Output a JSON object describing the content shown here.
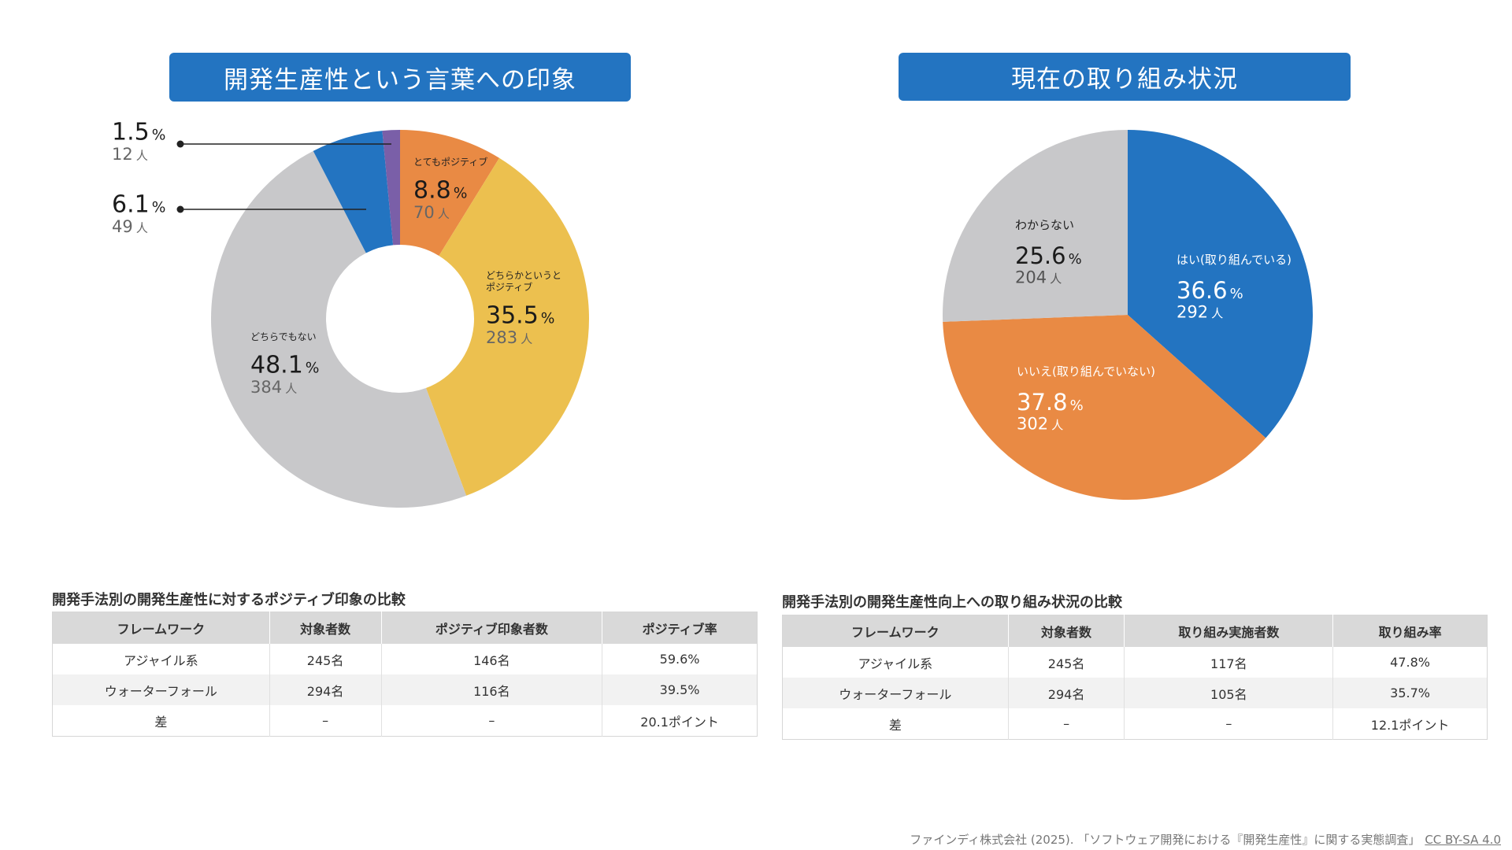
{
  "left_title": "開発生産性という言葉への印象",
  "right_title": "現在の取り組み状況",
  "colors": {
    "blue": "#2374c1",
    "orange": "#e98a44",
    "yellow": "#ecc04f",
    "gray": "#c8c8ca",
    "purple": "#7a5fa8"
  },
  "chart_data": [
    {
      "type": "pie",
      "donut": true,
      "title": "開発生産性という言葉への印象",
      "slices": [
        {
          "label": "とてもポジティブ",
          "percent": 8.8,
          "count": "70",
          "color": "#e98a44"
        },
        {
          "label": "どちらかというと\nポジティブ",
          "percent": 35.5,
          "count": "283",
          "color": "#ecc04f"
        },
        {
          "label": "どちらでもない",
          "percent": 48.1,
          "count": "384",
          "color": "#c8c8ca"
        },
        {
          "label": "",
          "percent": 6.1,
          "count": "49",
          "color": "#2374c1"
        },
        {
          "label": "",
          "percent": 1.5,
          "count": "12",
          "color": "#7a5fa8"
        }
      ]
    },
    {
      "type": "pie",
      "donut": false,
      "title": "現在の取り組み状況",
      "slices": [
        {
          "label": "はい(取り組んでいる)",
          "percent": 36.6,
          "count": "292",
          "color": "#2374c1"
        },
        {
          "label": "いいえ(取り組んでいない)",
          "percent": 37.8,
          "count": "302",
          "color": "#e98a44"
        },
        {
          "label": "わからない",
          "percent": 25.6,
          "count": "204",
          "color": "#c8c8ca"
        }
      ]
    }
  ],
  "unit_percent": "%",
  "unit_person": "人",
  "table1": {
    "title": "開発手法別の開発生産性に対するポジティブ印象の比較",
    "headers": [
      "フレームワーク",
      "対象者数",
      "ポジティブ印象者数",
      "ポジティブ率"
    ],
    "rows": [
      [
        "アジャイル系",
        "245名",
        "146名",
        "59.6%"
      ],
      [
        "ウォーターフォール",
        "294名",
        "116名",
        "39.5%"
      ],
      [
        "差",
        "–",
        "–",
        "20.1ポイント"
      ]
    ]
  },
  "table2": {
    "title": "開発手法別の開発生産性向上への取り組み状況の比較",
    "headers": [
      "フレームワーク",
      "対象者数",
      "取り組み実施者数",
      "取り組み率"
    ],
    "rows": [
      [
        "アジャイル系",
        "245名",
        "117名",
        "47.8%"
      ],
      [
        "ウォーターフォール",
        "294名",
        "105名",
        "35.7%"
      ],
      [
        "差",
        "–",
        "–",
        "12.1ポイント"
      ]
    ]
  },
  "footer": {
    "text": "ファインディ株式会社 (2025). 「ソフトウェア開発における『開発生産性』に関する実態調査」",
    "license": "CC BY-SA 4.0"
  }
}
